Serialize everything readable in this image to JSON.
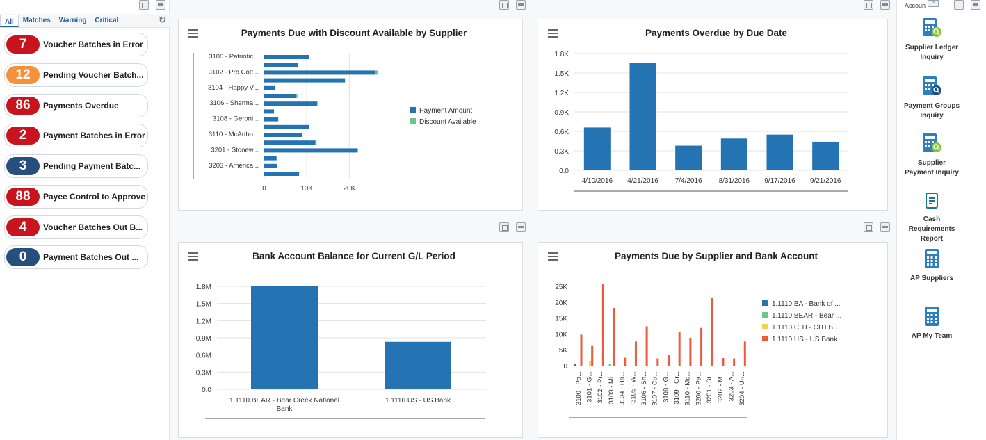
{
  "filters": {
    "tabs": [
      "All",
      "Matches",
      "Warning",
      "Critical"
    ],
    "active": "All"
  },
  "kpis": [
    {
      "value": "7",
      "label": "Voucher Batches in Error",
      "color": "#c8141e"
    },
    {
      "value": "12",
      "label": "Pending Voucher Batch...",
      "color": "#f3913c"
    },
    {
      "value": "86",
      "label": "Payments Overdue",
      "color": "#c8141e"
    },
    {
      "value": "2",
      "label": "Payment Batches in Error",
      "color": "#c8141e"
    },
    {
      "value": "3",
      "label": "Pending Payment Batc...",
      "color": "#274f7d"
    },
    {
      "value": "88",
      "label": "Payee Control to Approve",
      "color": "#c8141e"
    },
    {
      "value": "4",
      "label": "Voucher Batches Out B...",
      "color": "#c8141e"
    },
    {
      "value": "0",
      "label": "Payment Batches Out ...",
      "color": "#274f7d"
    }
  ],
  "panels": {
    "discount": {
      "title": "Payments Due with Discount Available by Supplier"
    },
    "overdue": {
      "title": "Payments Overdue by Due Date"
    },
    "bank": {
      "title": "Bank Account Balance for Current G/L Period"
    },
    "supplier_bank": {
      "title": "Payments Due by Supplier and Bank Account"
    }
  },
  "right_tiles": {
    "header": "Accoun",
    "items": [
      {
        "label_line1": "Supplier Ledger",
        "label_line2": "Inquiry",
        "label_line3": ""
      },
      {
        "label_line1": "Payment Groups",
        "label_line2": "Inquiry",
        "label_line3": ""
      },
      {
        "label_line1": "Supplier",
        "label_line2": "Payment Inquiry",
        "label_line3": ""
      },
      {
        "label_line1": "Cash",
        "label_line2": "Requirements",
        "label_line3": "Report"
      },
      {
        "label_line1": "AP Suppliers",
        "label_line2": "",
        "label_line3": ""
      },
      {
        "label_line1": "AP My Team",
        "label_line2": "",
        "label_line3": ""
      }
    ]
  },
  "colors": {
    "primary": "#2473b3",
    "green": "#6cc68a",
    "yellow": "#f5d04c",
    "orange": "#ee5a3a"
  },
  "chart_data": [
    {
      "type": "bar",
      "orientation": "horizontal",
      "title": "Payments Due with Discount Available by Supplier",
      "categories": [
        "3100 - Patriotic...",
        "",
        "3102 - Pro Cott...",
        "",
        "3104 - Happy V...",
        "",
        "3106 - Sherma...",
        "",
        "3108 - Geroni...",
        "",
        "3110 - McArthu...",
        "",
        "3201 - Stonew...",
        "",
        "3203 - America...",
        ""
      ],
      "series": [
        {
          "name": "Payment Amount",
          "values": [
            10500,
            8000,
            26000,
            19000,
            2500,
            7500,
            12500,
            2300,
            3300,
            10500,
            9000,
            12000,
            22000,
            2900,
            3100,
            8200
          ]
        },
        {
          "name": "Discount Available",
          "values": [
            0,
            0,
            800,
            0,
            0,
            300,
            0,
            0,
            0,
            0,
            0,
            300,
            0,
            0,
            0,
            0
          ]
        }
      ],
      "xticks": [
        "0",
        "10K",
        "20K"
      ],
      "xlim": [
        0,
        26000
      ]
    },
    {
      "type": "bar",
      "title": "Payments Overdue by Due Date",
      "categories": [
        "4/10/2016",
        "4/21/2016",
        "7/4/2016",
        "8/31/2016",
        "9/17/2016",
        "9/21/2016"
      ],
      "values": [
        660,
        1650,
        380,
        490,
        550,
        440
      ],
      "yticks": [
        "0.0",
        "0.3K",
        "0.6K",
        "0.9K",
        "1.2K",
        "1.5K",
        "1.8K"
      ],
      "ylim": [
        0,
        1800
      ]
    },
    {
      "type": "bar",
      "title": "Bank Account Balance for Current G/L Period",
      "categories": [
        "1.1110.BEAR - Bear Creek National Bank",
        "1.1110.US - US Bank"
      ],
      "values": [
        1800000,
        830000
      ],
      "yticks": [
        "0.0",
        "0.3M",
        "0.6M",
        "0.9M",
        "1.2M",
        "1.5M",
        "1.8M"
      ],
      "ylim": [
        0,
        1800000
      ]
    },
    {
      "type": "bar",
      "title": "Payments Due by Supplier and Bank Account",
      "categories": [
        "3100 - Pa...",
        "3101 - G...",
        "3102 - Pr...",
        "3103 - Mi...",
        "3104 - Ha...",
        "3105 - W...",
        "3106 - Sh...",
        "3107 - Cu...",
        "3108 - G...",
        "3109 - Gr...",
        "3110 - Mc...",
        "3200 - Pa...",
        "3201 - St...",
        "3202 - M...",
        "3203 - A...",
        "3204 - Un..."
      ],
      "series": [
        {
          "name": "1.1110.BA - Bank of ...",
          "values": [
            500,
            0,
            0,
            0,
            0,
            0,
            0,
            0,
            0,
            0,
            0,
            0,
            0,
            0,
            0,
            0
          ]
        },
        {
          "name": "1.1110.BEAR - Bear ...",
          "values": [
            0,
            0,
            0,
            500,
            0,
            0,
            0,
            0,
            0,
            0,
            0,
            0,
            0,
            0,
            0,
            0
          ]
        },
        {
          "name": "1.1110.CITI - CITI B...",
          "values": [
            0,
            1500,
            0,
            0,
            0,
            0,
            0,
            0,
            0,
            0,
            0,
            0,
            0,
            0,
            0,
            0
          ]
        },
        {
          "name": "1.1110.US - US Bank",
          "values": [
            9800,
            6200,
            25800,
            18200,
            2500,
            7600,
            12400,
            2300,
            3400,
            10500,
            8800,
            11900,
            21300,
            2400,
            2300,
            7600
          ]
        }
      ],
      "yticks": [
        "0",
        "5K",
        "10K",
        "15K",
        "20K",
        "25K"
      ],
      "ylim": [
        0,
        27000
      ]
    }
  ]
}
